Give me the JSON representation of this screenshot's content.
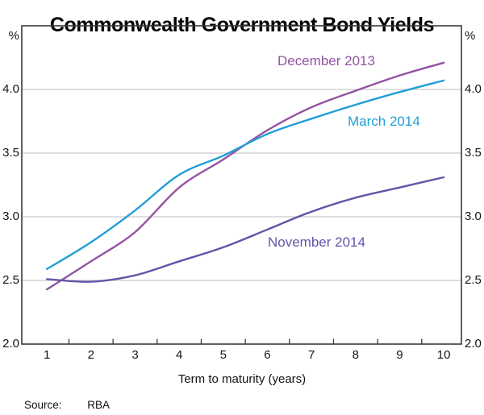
{
  "title": "Commonwealth Government Bond Yields",
  "axis": {
    "unit_left": "%",
    "unit_right": "%",
    "x_title": "Term to maturity (years)",
    "y_ticks": [
      "2.0",
      "2.5",
      "3.0",
      "3.5",
      "4.0"
    ],
    "x_ticks": [
      "1",
      "2",
      "3",
      "4",
      "5",
      "6",
      "7",
      "8",
      "9",
      "10"
    ]
  },
  "footer": {
    "source_label": "Source:",
    "source_value": "RBA"
  },
  "colors": {
    "grid": "#cbcbcb",
    "frame": "#3a3a3a",
    "text": "#141414"
  },
  "chart_data": {
    "type": "line",
    "title": "Commonwealth Government Bond Yields",
    "xlabel": "Term to maturity (years)",
    "ylabel": "%",
    "x": [
      1,
      2,
      3,
      4,
      5,
      6,
      7,
      8,
      9,
      10
    ],
    "series": [
      {
        "name": "December 2013",
        "color": "#9353a2",
        "values": [
          2.43,
          2.65,
          2.88,
          3.23,
          3.45,
          3.68,
          3.86,
          3.99,
          4.11,
          4.21
        ]
      },
      {
        "name": "March 2014",
        "color": "#1f9ed8",
        "values": [
          2.59,
          2.8,
          3.05,
          3.33,
          3.48,
          3.65,
          3.77,
          3.88,
          3.98,
          4.07
        ]
      },
      {
        "name": "November 2014",
        "color": "#6355a7",
        "values": [
          2.51,
          2.49,
          2.54,
          2.65,
          2.76,
          2.9,
          3.04,
          3.15,
          3.23,
          3.31
        ]
      }
    ],
    "xlim": [
      0.43,
      10.4
    ],
    "ylim": [
      2.0,
      4.5
    ],
    "grid": "horizontal-only",
    "x_boundary_ticks": [
      1.5,
      2.5,
      3.5,
      4.5,
      5.5,
      6.5,
      7.5,
      8.5,
      9.5
    ],
    "legend": "inline-labels-on-chart",
    "source": "RBA"
  }
}
